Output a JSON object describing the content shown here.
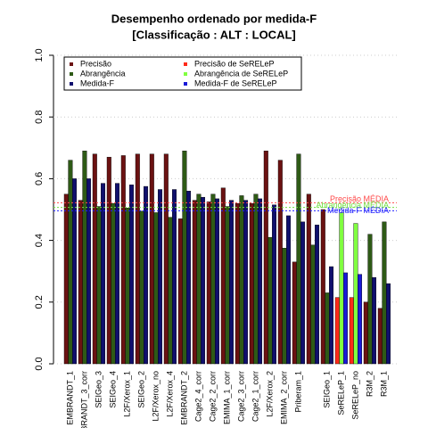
{
  "chart_data": {
    "type": "grouped_bar",
    "title": "Desempenho ordenado por medida-F",
    "subtitle": "[Classificação : ALT : LOCAL]",
    "categories": [
      "EMBRANDT_1",
      "BRANDT_3_corr",
      "SEIGeo_3",
      "SEIGeo_4",
      "L2F/Xerox_1",
      "SEIGeo_2",
      "L2F/Xerox_no",
      "L2F/Xerox_4",
      "EMBRANDT_2",
      "Cage2_4_corr",
      "Cage2_2_corr",
      "EMIMA_1_corr",
      "Cage2_3_corr",
      "Cage2_1_corr",
      "L2F/Xerox_2",
      "EMIMA_2_corr",
      "Priberam_1",
      null,
      "SEIGeo_1",
      "SeRELeP_1",
      "SeRELeP_no",
      "R3M_2",
      "R3M_1"
    ],
    "series": [
      {
        "name": "Precisão",
        "color": "#6b1212",
        "colors": [
          "#6b1212",
          "#6b1212",
          "#6b1212",
          "#6b1212",
          "#6b1212",
          "#6b1212",
          "#6b1212",
          "#6b1212",
          "#6b1212",
          "#6b1212",
          "#6b1212",
          "#6b1212",
          "#6b1212",
          "#6b1212",
          "#6b1212",
          "#6b1212",
          "#6b1212",
          "#6b1212",
          "#6b1212",
          "#ff2a1a",
          "#ff2a1a",
          "#6b1212",
          "#6b1212"
        ],
        "values": [
          0.55,
          0.53,
          0.68,
          0.67,
          0.675,
          0.68,
          0.68,
          0.68,
          0.47,
          0.53,
          0.525,
          0.57,
          0.52,
          0.52,
          0.69,
          0.66,
          0.33,
          0.55,
          0.5,
          0.215,
          0.215,
          0.2,
          0.18
        ]
      },
      {
        "name": "Abrangência",
        "color": "#2e5a16",
        "colors": [
          "#2e5a16",
          "#2e5a16",
          "#2e5a16",
          "#2e5a16",
          "#2e5a16",
          "#2e5a16",
          "#2e5a16",
          "#2e5a16",
          "#2e5a16",
          "#2e5a16",
          "#2e5a16",
          "#2e5a16",
          "#2e5a16",
          "#2e5a16",
          "#2e5a16",
          "#2e5a16",
          "#2e5a16",
          "#2e5a16",
          "#2e5a16",
          "#80ff40",
          "#80ff40",
          "#2e5a16",
          "#2e5a16"
        ],
        "values": [
          0.66,
          0.69,
          0.51,
          0.52,
          0.505,
          0.495,
          0.49,
          0.475,
          0.69,
          0.55,
          0.55,
          0.51,
          0.545,
          0.55,
          0.41,
          0.375,
          0.68,
          0.385,
          0.23,
          0.49,
          0.455,
          0.42,
          0.46
        ]
      },
      {
        "name": "Medida-F",
        "color": "#10106e",
        "colors": [
          "#10106e",
          "#10106e",
          "#10106e",
          "#10106e",
          "#10106e",
          "#10106e",
          "#10106e",
          "#10106e",
          "#10106e",
          "#10106e",
          "#10106e",
          "#10106e",
          "#10106e",
          "#10106e",
          "#10106e",
          "#10106e",
          "#10106e",
          "#10106e",
          "#10106e",
          "#1a1ad8",
          "#1a1ad8",
          "#10106e",
          "#10106e"
        ],
        "values": [
          0.6,
          0.6,
          0.585,
          0.585,
          0.58,
          0.575,
          0.565,
          0.565,
          0.56,
          0.54,
          0.535,
          0.53,
          0.53,
          0.535,
          0.515,
          0.48,
          0.46,
          0.45,
          0.315,
          0.295,
          0.29,
          0.28,
          0.26
        ]
      }
    ],
    "legend": [
      {
        "name": "Precisão",
        "color": "#6b1212"
      },
      {
        "name": "Abrangência",
        "color": "#2e5a16"
      },
      {
        "name": "Medida-F",
        "color": "#10106e"
      },
      {
        "name": "Precisão  de  SeRELeP",
        "color": "#ff2a1a"
      },
      {
        "name": "Abrangência  de  SeRELeP",
        "color": "#80ff40"
      },
      {
        "name": "Medida-F  de  SeRELeP",
        "color": "#1a1ad8"
      }
    ],
    "reference_lines": [
      {
        "label": "Precisão MÉDIA",
        "value": 0.522,
        "color": "#ff4a4a"
      },
      {
        "label": "Abrangência MÉDIA",
        "value": 0.507,
        "color": "#70e040"
      },
      {
        "label": "Medida-F MÉDIA",
        "value": 0.496,
        "color": "#2020ff"
      }
    ],
    "ylim": [
      0,
      1
    ],
    "yticks": [
      {
        "value": 0,
        "label": "0.0"
      },
      0.2,
      0.4,
      0.6,
      0.8,
      {
        "value": 1,
        "label": "1.0"
      }
    ],
    "grid": true
  }
}
